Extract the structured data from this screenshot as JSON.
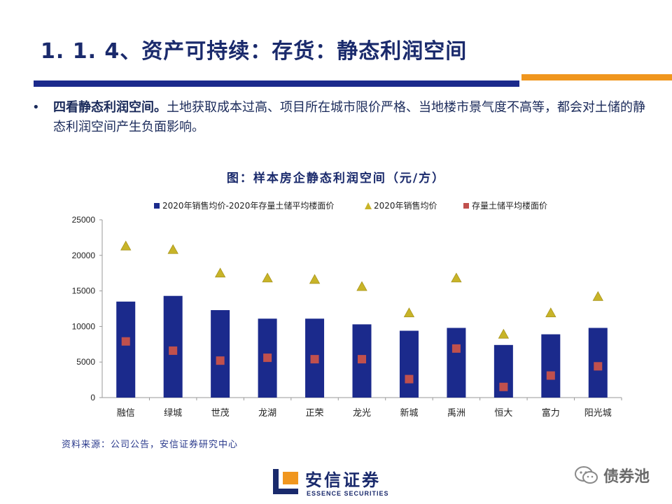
{
  "header": {
    "title": "1. 1. 4、资产可持续：存货：静态利润空间"
  },
  "bullet": {
    "marker": "•",
    "lead": "四看静态利润空间。",
    "body": "土地获取成本过高、项目所在城市限价严格、当地楼市景气度不高等，都会对土储的静态利润空间产生负面影响。"
  },
  "colors": {
    "title": "#1a2a6c",
    "bar": "#1b2a8c",
    "triangle": "#c8b428",
    "square": "#c0504d",
    "accent_orange": "#f0961e"
  },
  "chart_data": {
    "type": "bar",
    "title": "图：样本房企静态利润空间（元/方）",
    "categories": [
      "融信",
      "绿城",
      "世茂",
      "龙湖",
      "正荣",
      "龙光",
      "新城",
      "禹洲",
      "恒大",
      "富力",
      "阳光城"
    ],
    "series": [
      {
        "name": "2020年销售均价-2020年存量土储平均楼面价",
        "kind": "bar",
        "marker": "square-marker",
        "values": [
          13500,
          14300,
          12300,
          11100,
          11100,
          10300,
          9400,
          9800,
          7400,
          8900,
          9800
        ]
      },
      {
        "name": "2020年销售均价",
        "kind": "triangle",
        "marker": "triangle-marker",
        "values": [
          21300,
          20800,
          17500,
          16800,
          16600,
          15600,
          11900,
          16800,
          8900,
          11900,
          14200
        ]
      },
      {
        "name": "存量土储平均楼面价",
        "kind": "square",
        "marker": "square-marker",
        "values": [
          7900,
          6600,
          5200,
          5600,
          5400,
          5400,
          2600,
          6900,
          1500,
          3100,
          4400
        ]
      }
    ],
    "ylim": [
      0,
      25000
    ],
    "yticks": [
      "0",
      "5000",
      "10000",
      "15000",
      "20000",
      "25000"
    ],
    "legend_position": "top",
    "grid": false,
    "xlabel": "",
    "ylabel": ""
  },
  "source": "资料来源：公司公告，安信证券研究中心",
  "logo": {
    "cn": "安信证券",
    "en": "ESSENCE SECURITIES"
  },
  "watermark": {
    "icon": "wechat-icon",
    "text": "债券池"
  }
}
